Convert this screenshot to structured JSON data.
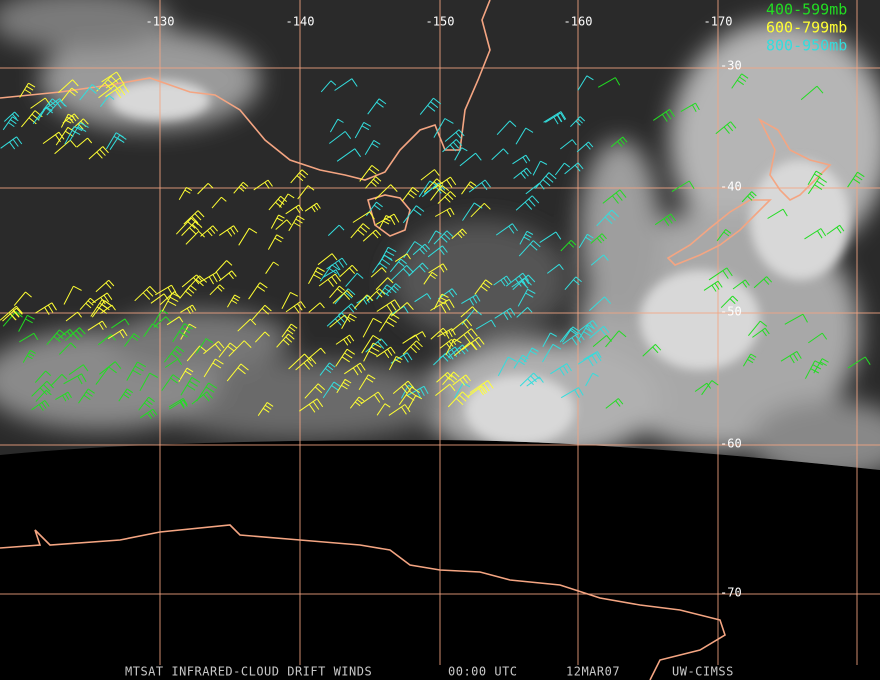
{
  "map": {
    "longitude_labels": [
      "-130",
      "-140",
      "-150",
      "-160",
      "-170"
    ],
    "latitude_labels": [
      "-30",
      "-40",
      "-50",
      "-60",
      "-70"
    ],
    "legend": [
      "400-599mb",
      "600-799mb",
      "800-950mb"
    ],
    "footer": {
      "title": "MTSAT INFRARED-CLOUD DRIFT WINDS",
      "time": "00:00 UTC",
      "date": "12MAR07",
      "source": "UW-CIMSS"
    }
  }
}
